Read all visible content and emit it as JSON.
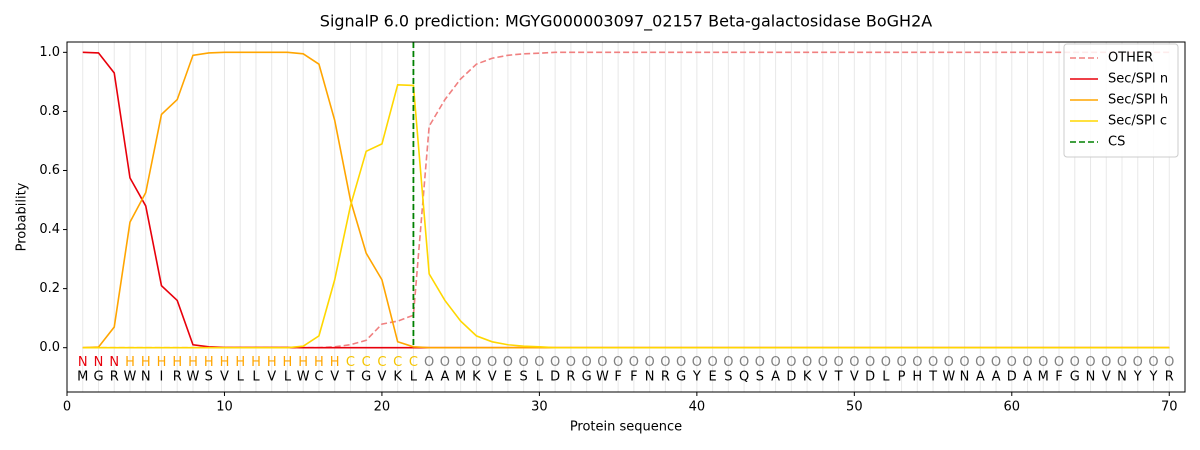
{
  "chart_data": {
    "type": "line",
    "title": "SignalP 6.0 prediction: MGYG000003097_02157 Beta-galactosidase BoGH2A",
    "x_label": "Protein sequence",
    "y_label": "Probability",
    "x": [
      1,
      2,
      3,
      4,
      5,
      6,
      7,
      8,
      9,
      10,
      11,
      12,
      13,
      14,
      15,
      16,
      17,
      18,
      19,
      20,
      21,
      22,
      23,
      24,
      25,
      26,
      27,
      28,
      29,
      30,
      31,
      32,
      33,
      34,
      35,
      36,
      37,
      38,
      39,
      40,
      41,
      42,
      43,
      44,
      45,
      46,
      47,
      48,
      49,
      50,
      51,
      52,
      53,
      54,
      55,
      56,
      57,
      58,
      59,
      60,
      61,
      62,
      63,
      64,
      65,
      66,
      67,
      68,
      69,
      70
    ],
    "sequence": [
      "M",
      "G",
      "R",
      "W",
      "N",
      "I",
      "R",
      "W",
      "S",
      "V",
      "L",
      "L",
      "V",
      "L",
      "W",
      "C",
      "V",
      "T",
      "G",
      "V",
      "K",
      "L",
      "A",
      "A",
      "M",
      "K",
      "V",
      "E",
      "S",
      "L",
      "D",
      "R",
      "G",
      "W",
      "F",
      "F",
      "N",
      "R",
      "G",
      "Y",
      "E",
      "S",
      "Q",
      "S",
      "A",
      "D",
      "K",
      "V",
      "T",
      "V",
      "D",
      "L",
      "P",
      "H",
      "T",
      "W",
      "N",
      "A",
      "A",
      "D",
      "A",
      "M",
      "F",
      "G",
      "N",
      "V",
      "N",
      "Y",
      "Y",
      "R"
    ],
    "regions": [
      "N",
      "N",
      "N",
      "H",
      "H",
      "H",
      "H",
      "H",
      "H",
      "H",
      "H",
      "H",
      "H",
      "H",
      "H",
      "H",
      "H",
      "C",
      "C",
      "C",
      "C",
      "C",
      "O",
      "O",
      "O",
      "O",
      "O",
      "O",
      "O",
      "O",
      "O",
      "O",
      "O",
      "O",
      "O",
      "O",
      "O",
      "O",
      "O",
      "O",
      "O",
      "O",
      "O",
      "O",
      "O",
      "O",
      "O",
      "O",
      "O",
      "O",
      "O",
      "O",
      "O",
      "O",
      "O",
      "O",
      "O",
      "O",
      "O",
      "O",
      "O",
      "O",
      "O",
      "O",
      "O",
      "O",
      "O",
      "O",
      "O",
      "O"
    ],
    "region_colors": {
      "N": "#e8000b",
      "H": "#ffa500",
      "C": "#f5c400",
      "O": "#808080"
    },
    "series": [
      {
        "name": "OTHER",
        "color": "#f08080",
        "dashed": true,
        "values": [
          0,
          0,
          0,
          0,
          0,
          0,
          0,
          0,
          0,
          0,
          0,
          0,
          0,
          0,
          0,
          0,
          0.003,
          0.01,
          0.025,
          0.08,
          0.09,
          0.11,
          0.75,
          0.84,
          0.91,
          0.96,
          0.98,
          0.99,
          0.995,
          0.997,
          1,
          1,
          1,
          1,
          1,
          1,
          1,
          1,
          1,
          1,
          1,
          1,
          1,
          1,
          1,
          1,
          1,
          1,
          1,
          1,
          1,
          1,
          1,
          1,
          1,
          1,
          1,
          1,
          1,
          1,
          1,
          1,
          1,
          1,
          1,
          1,
          1,
          1,
          1,
          1
        ]
      },
      {
        "name": "Sec/SPI n",
        "color": "#e8000b",
        "values": [
          1,
          0.998,
          0.93,
          0.575,
          0.48,
          0.21,
          0.16,
          0.01,
          0.003,
          0.001,
          0.001,
          0.001,
          0.001,
          0.001,
          0,
          0,
          0,
          0,
          0,
          0,
          0,
          0,
          0,
          0,
          0,
          0,
          0,
          0,
          0,
          0,
          0,
          0,
          0,
          0,
          0,
          0,
          0,
          0,
          0,
          0,
          0,
          0,
          0,
          0,
          0,
          0,
          0,
          0,
          0,
          0,
          0,
          0,
          0,
          0,
          0,
          0,
          0,
          0,
          0,
          0,
          0,
          0,
          0,
          0,
          0,
          0,
          0,
          0,
          0,
          0
        ]
      },
      {
        "name": "Sec/SPI h",
        "color": "#ffa500",
        "values": [
          0,
          0.002,
          0.07,
          0.425,
          0.525,
          0.79,
          0.84,
          0.99,
          0.998,
          1,
          1,
          1,
          1,
          1,
          0.995,
          0.96,
          0.77,
          0.5,
          0.32,
          0.23,
          0.02,
          0.003,
          0,
          0,
          0,
          0,
          0,
          0,
          0,
          0,
          0,
          0,
          0,
          0,
          0,
          0,
          0,
          0,
          0,
          0,
          0,
          0,
          0,
          0,
          0,
          0,
          0,
          0,
          0,
          0,
          0,
          0,
          0,
          0,
          0,
          0,
          0,
          0,
          0,
          0,
          0,
          0,
          0,
          0,
          0,
          0,
          0,
          0,
          0,
          0
        ]
      },
      {
        "name": "Sec/SPI c",
        "color": "#ffd700",
        "values": [
          0,
          0,
          0,
          0,
          0,
          0,
          0,
          0,
          0,
          0,
          0,
          0,
          0,
          0,
          0.005,
          0.04,
          0.23,
          0.48,
          0.665,
          0.69,
          0.89,
          0.888,
          0.25,
          0.16,
          0.09,
          0.04,
          0.02,
          0.01,
          0.005,
          0.003,
          0,
          0,
          0,
          0,
          0,
          0,
          0,
          0,
          0,
          0,
          0,
          0,
          0,
          0,
          0,
          0,
          0,
          0,
          0,
          0,
          0,
          0,
          0,
          0,
          0,
          0,
          0,
          0,
          0,
          0,
          0,
          0,
          0,
          0,
          0,
          0,
          0,
          0,
          0,
          0
        ]
      }
    ],
    "cs": {
      "name": "CS",
      "color": "#008000",
      "x": 22
    },
    "xlim": [
      0,
      71
    ],
    "ylim": [
      -0.15,
      1.035
    ],
    "xticks": [
      0,
      10,
      20,
      30,
      40,
      50,
      60,
      70
    ],
    "yticks": [
      {
        "value": 0,
        "label": "0.0"
      },
      {
        "value": 0.2,
        "label": "0.2"
      },
      {
        "value": 0.4,
        "label": "0.4"
      },
      {
        "value": 0.6,
        "label": "0.6"
      },
      {
        "value": 0.8,
        "label": "0.8"
      },
      {
        "value": 1,
        "label": "1.0"
      }
    ],
    "legend": "upper right"
  }
}
